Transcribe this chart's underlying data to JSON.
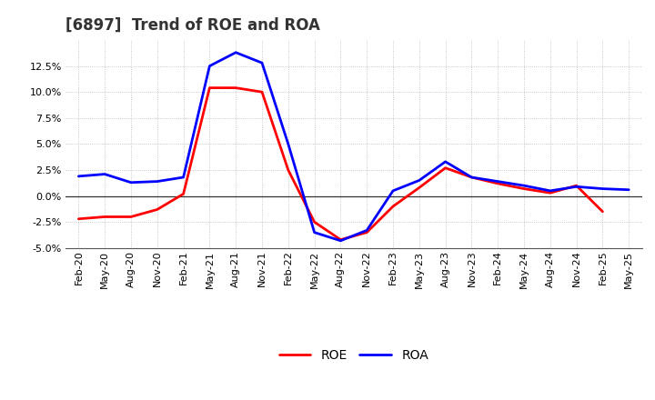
{
  "title": "[6897]  Trend of ROE and ROA",
  "x_labels": [
    "Feb-20",
    "May-20",
    "Aug-20",
    "Nov-20",
    "Feb-21",
    "May-21",
    "Aug-21",
    "Nov-21",
    "Feb-22",
    "May-22",
    "Aug-22",
    "Nov-22",
    "Feb-23",
    "May-23",
    "Aug-23",
    "Nov-23",
    "Feb-24",
    "May-24",
    "Aug-24",
    "Nov-24",
    "Feb-25",
    "May-25"
  ],
  "roe": [
    -2.2,
    -2.0,
    -2.0,
    -1.3,
    0.2,
    10.4,
    10.4,
    10.0,
    2.5,
    -2.5,
    -4.2,
    -3.5,
    -1.0,
    0.8,
    2.7,
    1.8,
    1.2,
    0.7,
    0.3,
    1.0,
    -1.5,
    null
  ],
  "roa": [
    1.9,
    2.1,
    1.3,
    1.4,
    1.8,
    12.5,
    13.8,
    12.8,
    5.0,
    -3.5,
    -4.3,
    -3.3,
    0.5,
    1.5,
    3.3,
    1.8,
    1.4,
    1.0,
    0.5,
    0.9,
    0.7,
    0.6
  ],
  "roe_color": "#ff0000",
  "roa_color": "#0000ff",
  "ylim": [
    -5.0,
    15.0
  ],
  "yticks": [
    -5.0,
    -2.5,
    0.0,
    2.5,
    5.0,
    7.5,
    10.0,
    12.5
  ],
  "background_color": "#ffffff",
  "plot_bg_color": "#ffffff",
  "grid_color": "#888888",
  "title_fontsize": 12,
  "tick_fontsize": 8,
  "legend_fontsize": 10,
  "linewidth": 2.0
}
